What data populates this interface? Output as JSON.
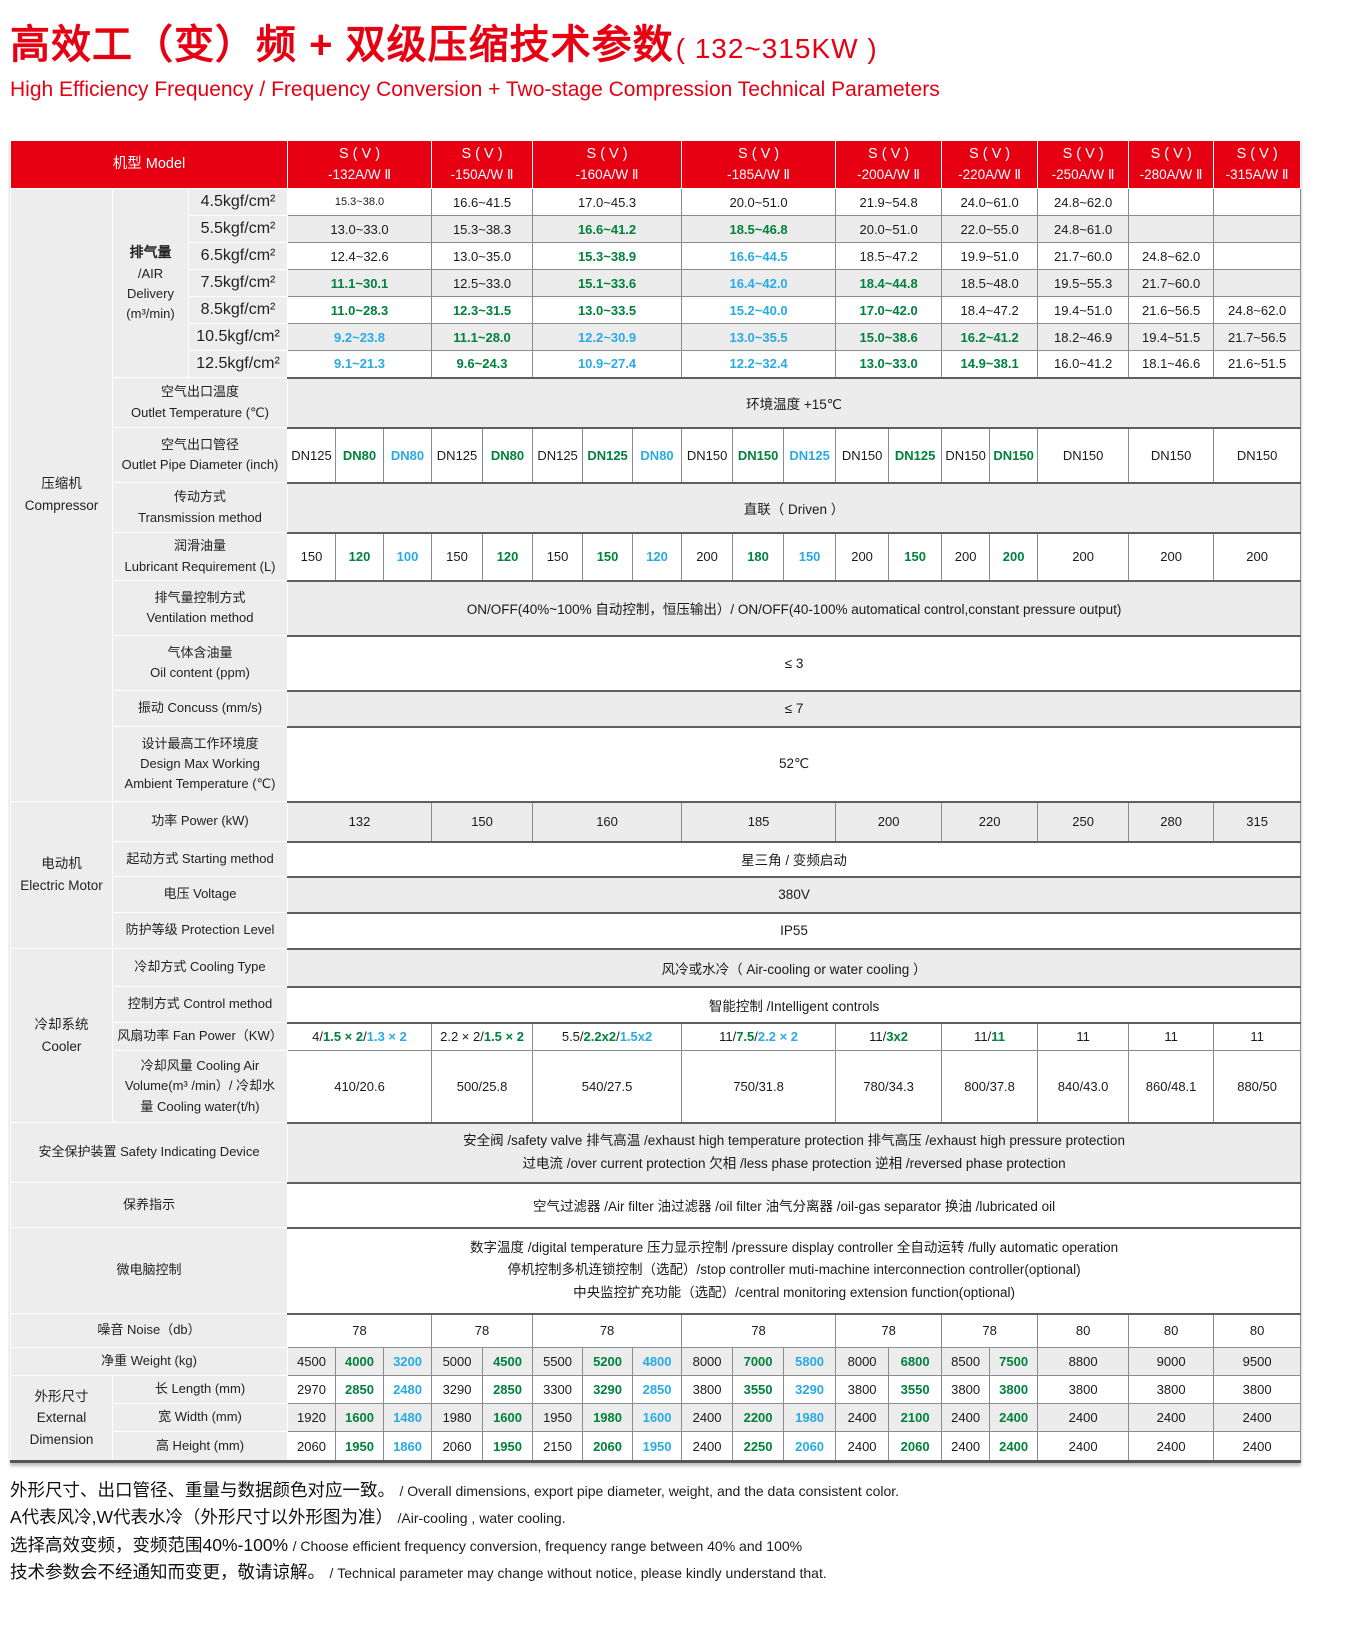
{
  "page": {
    "title_zh": "高效工（变）频 + 双级压缩技术参数",
    "title_kw": "( 132~315KW )",
    "subtitle_en": "High Efficiency Frequency / Frequency Conversion + Two-stage Compression Technical Parameters"
  },
  "colors": {
    "red": "#e60012",
    "green": "#00813c",
    "cyan": "#29abe2",
    "black": "#1a1a1a"
  },
  "header": {
    "model_label": "机型 Model",
    "model_line1": "S ( V )",
    "models": [
      "-132A/W Ⅱ",
      "-150A/W Ⅱ",
      "-160A/W Ⅱ",
      "-185A/W Ⅱ",
      "-200A/W Ⅱ",
      "-220A/W Ⅱ",
      "-250A/W Ⅱ",
      "-280A/W Ⅱ",
      "-315A/W Ⅱ"
    ]
  },
  "sections": {
    "compressor": [
      "压缩机",
      "Compressor"
    ],
    "motor": [
      "电动机",
      "Electric Motor"
    ],
    "cooler": [
      "冷却系统",
      "Cooler"
    ],
    "dimension": [
      "外形尺寸",
      "External",
      "Dimension"
    ]
  },
  "labels": {
    "air": [
      "排气量",
      "/AIR",
      "Delivery",
      "(m³/min)"
    ],
    "outlet_temp": [
      "空气出口温度",
      "Outlet Temperature (℃)"
    ],
    "pipe": [
      "空气出口管径",
      "Outlet Pipe Diameter (inch)"
    ],
    "transmission": [
      "传动方式",
      "Transmission method"
    ],
    "lubricant": [
      "润滑油量",
      "Lubricant Requirement (L)"
    ],
    "ventilation": [
      "排气量控制方式",
      "Ventilation method"
    ],
    "oil": [
      "气体含油量",
      "Oil content (ppm)"
    ],
    "concuss": [
      "振动 Concuss (mm/s)"
    ],
    "design": [
      "设计最高工作环境度",
      "Design Max Working",
      "Ambient  Temperature (℃)"
    ],
    "power": [
      "功率 Power (kW)"
    ],
    "starting": [
      "起动方式 Starting method"
    ],
    "voltage": [
      "电压 Voltage"
    ],
    "protection": [
      "防护等级 Protection Level"
    ],
    "cooling_type": [
      "冷却方式 Cooling Type"
    ],
    "control": [
      "控制方式 Control method"
    ],
    "fan": [
      "风扇功率 Fan Power（KW）"
    ],
    "volume": [
      "冷却风量 Cooling Air",
      "Volume(m³ /min）/ 冷却水",
      "量 Cooling water(t/h)"
    ],
    "safety": [
      "安全保护装置 Safety Indicating Device"
    ],
    "maintain": [
      "保养指示"
    ],
    "micro": [
      "微电脑控制"
    ],
    "noise": [
      "噪音 Noise（db）"
    ],
    "weight": [
      "净重 Weight (kg)"
    ],
    "length": [
      "长 Length  (mm)"
    ],
    "width": [
      "宽 Width  (mm)"
    ],
    "height": [
      "高 Height  (mm)"
    ]
  },
  "air": {
    "pressures": [
      "4.5kgf/cm²",
      "5.5kgf/cm²",
      "6.5kgf/cm²",
      "7.5kgf/cm²",
      "8.5kgf/cm²",
      "10.5kgf/cm²",
      "12.5kgf/cm²"
    ],
    "rows": [
      {
        "cells": [
          [
            "15.3~38.0",
            "k"
          ],
          [
            "16.6~41.5",
            "k"
          ],
          [
            "17.0~45.3",
            "k"
          ],
          [
            "20.0~51.0",
            "k"
          ],
          [
            "21.9~54.8",
            "k"
          ],
          [
            "24.0~61.0",
            "k"
          ],
          [
            "24.8~62.0",
            "k"
          ],
          null,
          null
        ]
      },
      {
        "cells": [
          [
            "13.0~33.0",
            "k"
          ],
          [
            "15.3~38.3",
            "k"
          ],
          [
            "16.6~41.2",
            "g"
          ],
          [
            "18.5~46.8",
            "g"
          ],
          [
            "20.0~51.0",
            "k"
          ],
          [
            "22.0~55.0",
            "k"
          ],
          [
            "24.8~61.0",
            "k"
          ],
          null,
          null
        ]
      },
      {
        "cells": [
          [
            "12.4~32.6",
            "k"
          ],
          [
            "13.0~35.0",
            "k"
          ],
          [
            "15.3~38.9",
            "g"
          ],
          [
            "16.6~44.5",
            "c"
          ],
          [
            "18.5~47.2",
            "k"
          ],
          [
            "19.9~51.0",
            "k"
          ],
          [
            "21.7~60.0",
            "k"
          ],
          [
            "24.8~62.0",
            "k"
          ],
          null
        ]
      },
      {
        "cells": [
          [
            "11.1~30.1",
            "g"
          ],
          [
            "12.5~33.0",
            "k"
          ],
          [
            "15.1~33.6",
            "g"
          ],
          [
            "16.4~42.0",
            "c"
          ],
          [
            "18.4~44.8",
            "g"
          ],
          [
            "18.5~48.0",
            "k"
          ],
          [
            "19.5~55.3",
            "k"
          ],
          [
            "21.7~60.0",
            "k"
          ],
          null
        ]
      },
      {
        "cells": [
          [
            "11.0~28.3",
            "g"
          ],
          [
            "12.3~31.5",
            "g"
          ],
          [
            "13.0~33.5",
            "g"
          ],
          [
            "15.2~40.0",
            "c"
          ],
          [
            "17.0~42.0",
            "g"
          ],
          [
            "18.4~47.2",
            "k"
          ],
          [
            "19.4~51.0",
            "k"
          ],
          [
            "21.6~56.5",
            "k"
          ],
          [
            "24.8~62.0",
            "k"
          ]
        ]
      },
      {
        "cells": [
          [
            "9.2~23.8",
            "c"
          ],
          [
            "11.1~28.0",
            "g"
          ],
          [
            "12.2~30.9",
            "c"
          ],
          [
            "13.0~35.5",
            "c"
          ],
          [
            "15.0~38.6",
            "g"
          ],
          [
            "16.2~41.2",
            "g"
          ],
          [
            "18.2~46.9",
            "k"
          ],
          [
            "19.4~51.5",
            "k"
          ],
          [
            "21.7~56.5",
            "k"
          ]
        ]
      },
      {
        "cells": [
          [
            "9.1~21.3",
            "c"
          ],
          [
            "9.6~24.3",
            "g"
          ],
          [
            "10.9~27.4",
            "c"
          ],
          [
            "12.2~32.4",
            "c"
          ],
          [
            "13.0~33.0",
            "g"
          ],
          [
            "14.9~38.1",
            "g"
          ],
          [
            "16.0~41.2",
            "k"
          ],
          [
            "18.1~46.6",
            "k"
          ],
          [
            "21.6~51.5",
            "k"
          ]
        ]
      }
    ]
  },
  "bands": {
    "outlet_temp": "环境温度 +15℃",
    "transmission": "直联（ Driven ）",
    "ventilation": "ON/OFF(40%~100% 自动控制，恒压输出）/ ON/OFF(40-100% automatical control,constant pressure output)",
    "oil": "≤ 3",
    "concuss": "≤ 7",
    "design": "52℃",
    "starting": "星三角 / 变频启动",
    "voltage": "380V",
    "protection": "IP55",
    "cooling_type": "风冷或水冷（ Air-cooling or water cooling ）",
    "control": "智能控制 /Intelligent controls",
    "maintain": "空气过滤器 /Air filter  油过滤器 /oil filter   油气分离器 /oil-gas separator  换油 /lubricated oil",
    "safety_lines": [
      "安全阀 /safety valve  排气高温 /exhaust high temperature protection  排气高压 /exhaust high pressure protection",
      "过电流 /over current protection  欠相 /less phase protection  逆相 /reversed phase  protection"
    ],
    "micro_lines": [
      "数字温度 /digital temperature  压力显示控制 /pressure display controller  全自动运转 /fully automatic operation",
      "停机控制多机连锁控制（选配）/stop controller muti-machine interconnection controller(optional)",
      "中央监控扩充功能（选配）/central monitoring extension function(optional)"
    ]
  },
  "pipe": [
    [
      [
        "DN125",
        "k"
      ],
      [
        "DN80",
        "g"
      ],
      [
        "DN80",
        "c"
      ]
    ],
    [
      [
        "DN125",
        "k"
      ],
      [
        "DN80",
        "g"
      ]
    ],
    [
      [
        "DN125",
        "k"
      ],
      [
        "DN125",
        "g"
      ],
      [
        "DN80",
        "c"
      ]
    ],
    [
      [
        "DN150",
        "k"
      ],
      [
        "DN150",
        "g"
      ],
      [
        "DN125",
        "c"
      ]
    ],
    [
      [
        "DN150",
        "k"
      ],
      [
        "DN125",
        "g"
      ]
    ],
    [
      [
        "DN150",
        "k"
      ],
      [
        "DN150",
        "g"
      ]
    ],
    [
      [
        "DN150",
        "k"
      ]
    ],
    [
      [
        "DN150",
        "k"
      ]
    ],
    [
      [
        "DN150",
        "k"
      ]
    ]
  ],
  "lubricant": [
    [
      [
        "150",
        "k"
      ],
      [
        "120",
        "g"
      ],
      [
        "100",
        "c"
      ]
    ],
    [
      [
        "150",
        "k"
      ],
      [
        "120",
        "g"
      ]
    ],
    [
      [
        "150",
        "k"
      ],
      [
        "150",
        "g"
      ],
      [
        "120",
        "c"
      ]
    ],
    [
      [
        "200",
        "k"
      ],
      [
        "180",
        "g"
      ],
      [
        "150",
        "c"
      ]
    ],
    [
      [
        "200",
        "k"
      ],
      [
        "150",
        "g"
      ]
    ],
    [
      [
        "200",
        "k"
      ],
      [
        "200",
        "g"
      ]
    ],
    [
      [
        "200",
        "k"
      ]
    ],
    [
      [
        "200",
        "k"
      ]
    ],
    [
      [
        "200",
        "k"
      ]
    ]
  ],
  "power": [
    "132",
    "150",
    "160",
    "185",
    "200",
    "220",
    "250",
    "280",
    "315"
  ],
  "fan": [
    [
      [
        "4/",
        "k"
      ],
      [
        "1.5 × 2",
        "g"
      ],
      [
        "/",
        "k"
      ],
      [
        "1.3 × 2",
        "c"
      ]
    ],
    [
      [
        "2.2 × 2/",
        "k"
      ],
      [
        "1.5 × 2",
        "g"
      ]
    ],
    [
      [
        "5.5/",
        "k"
      ],
      [
        "2.2x2",
        "g"
      ],
      [
        "/",
        "k"
      ],
      [
        "1.5x2",
        "c"
      ]
    ],
    [
      [
        "11/",
        "k"
      ],
      [
        "7.5",
        "g"
      ],
      [
        "/",
        "k"
      ],
      [
        "2.2 × 2",
        "c"
      ]
    ],
    [
      [
        "11/",
        "k"
      ],
      [
        "3x2",
        "g"
      ]
    ],
    [
      [
        "11/",
        "k"
      ],
      [
        "11",
        "g"
      ]
    ],
    [
      [
        "11",
        "k"
      ]
    ],
    [
      [
        "11",
        "k"
      ]
    ],
    [
      [
        "11",
        "k"
      ]
    ]
  ],
  "volume": [
    "410/20.6",
    "500/25.8",
    "540/27.5",
    "750/31.8",
    "780/34.3",
    "800/37.8",
    "840/43.0",
    "860/48.1",
    "880/50"
  ],
  "noise": [
    "78",
    "78",
    "78",
    "78",
    "78",
    "78",
    "80",
    "80",
    "80"
  ],
  "weight": [
    [
      [
        "4500",
        "k"
      ],
      [
        "4000",
        "g"
      ],
      [
        "3200",
        "c"
      ]
    ],
    [
      [
        "5000",
        "k"
      ],
      [
        "4500",
        "g"
      ]
    ],
    [
      [
        "5500",
        "k"
      ],
      [
        "5200",
        "g"
      ],
      [
        "4800",
        "c"
      ]
    ],
    [
      [
        "8000",
        "k"
      ],
      [
        "7000",
        "g"
      ],
      [
        "5800",
        "c"
      ]
    ],
    [
      [
        "8000",
        "k"
      ],
      [
        "6800",
        "g"
      ]
    ],
    [
      [
        "8500",
        "k"
      ],
      [
        "7500",
        "g"
      ]
    ],
    [
      [
        "8800",
        "k"
      ]
    ],
    [
      [
        "9000",
        "k"
      ]
    ],
    [
      [
        "9500",
        "k"
      ]
    ]
  ],
  "length": [
    [
      [
        "2970",
        "k"
      ],
      [
        "2850",
        "g"
      ],
      [
        "2480",
        "c"
      ]
    ],
    [
      [
        "3290",
        "k"
      ],
      [
        "2850",
        "g"
      ]
    ],
    [
      [
        "3300",
        "k"
      ],
      [
        "3290",
        "g"
      ],
      [
        "2850",
        "c"
      ]
    ],
    [
      [
        "3800",
        "k"
      ],
      [
        "3550",
        "g"
      ],
      [
        "3290",
        "c"
      ]
    ],
    [
      [
        "3800",
        "k"
      ],
      [
        "3550",
        "g"
      ]
    ],
    [
      [
        "3800",
        "k"
      ],
      [
        "3800",
        "g"
      ]
    ],
    [
      [
        "3800",
        "k"
      ]
    ],
    [
      [
        "3800",
        "k"
      ]
    ],
    [
      [
        "3800",
        "k"
      ]
    ]
  ],
  "width": [
    [
      [
        "1920",
        "k"
      ],
      [
        "1600",
        "g"
      ],
      [
        "1480",
        "c"
      ]
    ],
    [
      [
        "1980",
        "k"
      ],
      [
        "1600",
        "g"
      ]
    ],
    [
      [
        "1950",
        "k"
      ],
      [
        "1980",
        "g"
      ],
      [
        "1600",
        "c"
      ]
    ],
    [
      [
        "2400",
        "k"
      ],
      [
        "2200",
        "g"
      ],
      [
        "1980",
        "c"
      ]
    ],
    [
      [
        "2400",
        "k"
      ],
      [
        "2100",
        "g"
      ]
    ],
    [
      [
        "2400",
        "k"
      ],
      [
        "2400",
        "g"
      ]
    ],
    [
      [
        "2400",
        "k"
      ]
    ],
    [
      [
        "2400",
        "k"
      ]
    ],
    [
      [
        "2400",
        "k"
      ]
    ]
  ],
  "height": [
    [
      [
        "2060",
        "k"
      ],
      [
        "1950",
        "g"
      ],
      [
        "1860",
        "c"
      ]
    ],
    [
      [
        "2060",
        "k"
      ],
      [
        "1950",
        "g"
      ]
    ],
    [
      [
        "2150",
        "k"
      ],
      [
        "2060",
        "g"
      ],
      [
        "1950",
        "c"
      ]
    ],
    [
      [
        "2400",
        "k"
      ],
      [
        "2250",
        "g"
      ],
      [
        "2060",
        "c"
      ]
    ],
    [
      [
        "2400",
        "k"
      ],
      [
        "2060",
        "g"
      ]
    ],
    [
      [
        "2400",
        "k"
      ],
      [
        "2400",
        "g"
      ]
    ],
    [
      [
        "2400",
        "k"
      ]
    ],
    [
      [
        "2400",
        "k"
      ]
    ],
    [
      [
        "2400",
        "k"
      ]
    ]
  ],
  "notes": [
    {
      "zh": "外形尺寸、出口管径、重量与数据颜色对应一致。",
      "en": "/ Overall dimensions, export pipe diameter, weight, and the data consistent color."
    },
    {
      "zh": "A代表风冷,W代表水冷（外形尺寸以外形图为准）",
      "en": "/Air-cooling , water cooling."
    },
    {
      "zh": "选择高效变频，变频范围40%-100%",
      "en": "/ Choose efficient frequency conversion, frequency range between 40% and 100%"
    },
    {
      "zh": "技术参数会不经通知而变更，敬请谅解。",
      "en": "/ Technical parameter may change without notice, please kindly understand that."
    }
  ]
}
